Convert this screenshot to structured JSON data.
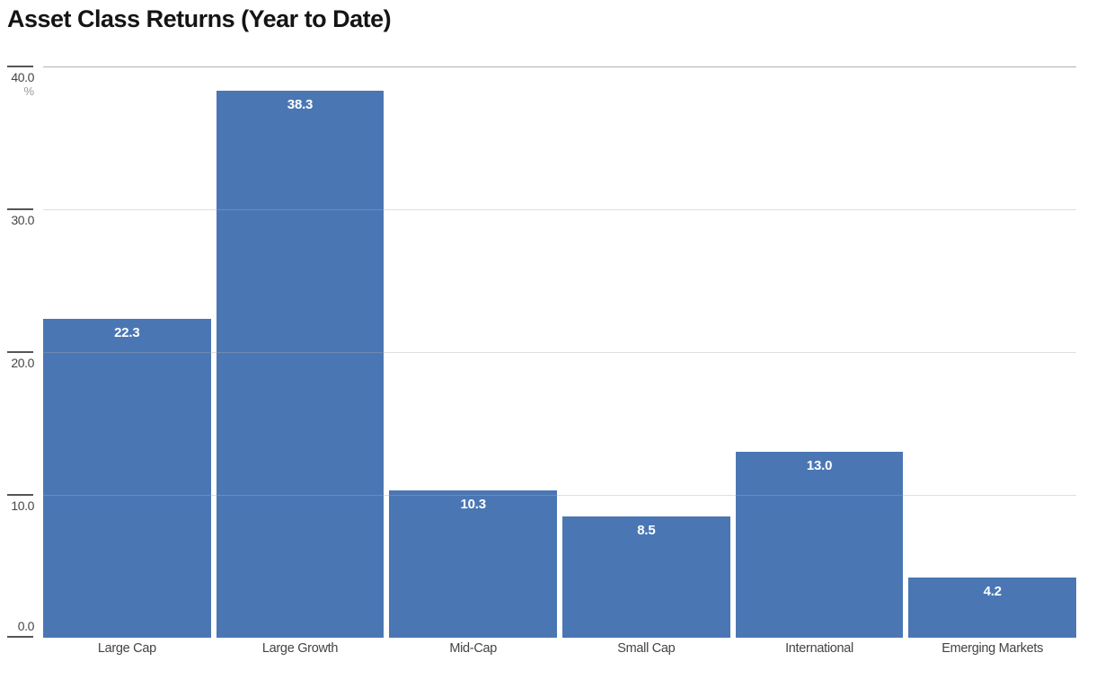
{
  "page": {
    "title": "Asset Class Returns (Year to Date)"
  },
  "chart_data": {
    "type": "bar",
    "title": "Asset Class Returns (Year to Date)",
    "categories": [
      "Large Cap",
      "Large Growth",
      "Mid-Cap",
      "Small Cap",
      "International",
      "Emerging Markets"
    ],
    "values": [
      22.3,
      38.3,
      10.3,
      8.5,
      13.0,
      4.2
    ],
    "value_labels": [
      "22.3",
      "38.3",
      "10.3",
      "8.5",
      "13.0",
      "4.2"
    ],
    "xlabel": "",
    "ylabel": "%",
    "ylim": [
      0,
      40
    ],
    "yticks": [
      {
        "value": 0,
        "label": "0.0"
      },
      {
        "value": 10,
        "label": "10.0"
      },
      {
        "value": 20,
        "label": "20.0"
      },
      {
        "value": 30,
        "label": "30.0"
      },
      {
        "value": 40,
        "label": "40.0",
        "sublabel": "%"
      }
    ],
    "grid": true,
    "legend": false,
    "colors": {
      "background": "#ffffff",
      "bar": "#4a77b4",
      "value_label": "#ffffff",
      "grid_line": "rgba(170,170,170,0.38)",
      "top_axis_line": "#b3b3b3",
      "tick_mark": "#555555",
      "tick_label": "#454545",
      "unit_label": "#999999",
      "category_label": "#444444",
      "title": "#141414"
    }
  }
}
